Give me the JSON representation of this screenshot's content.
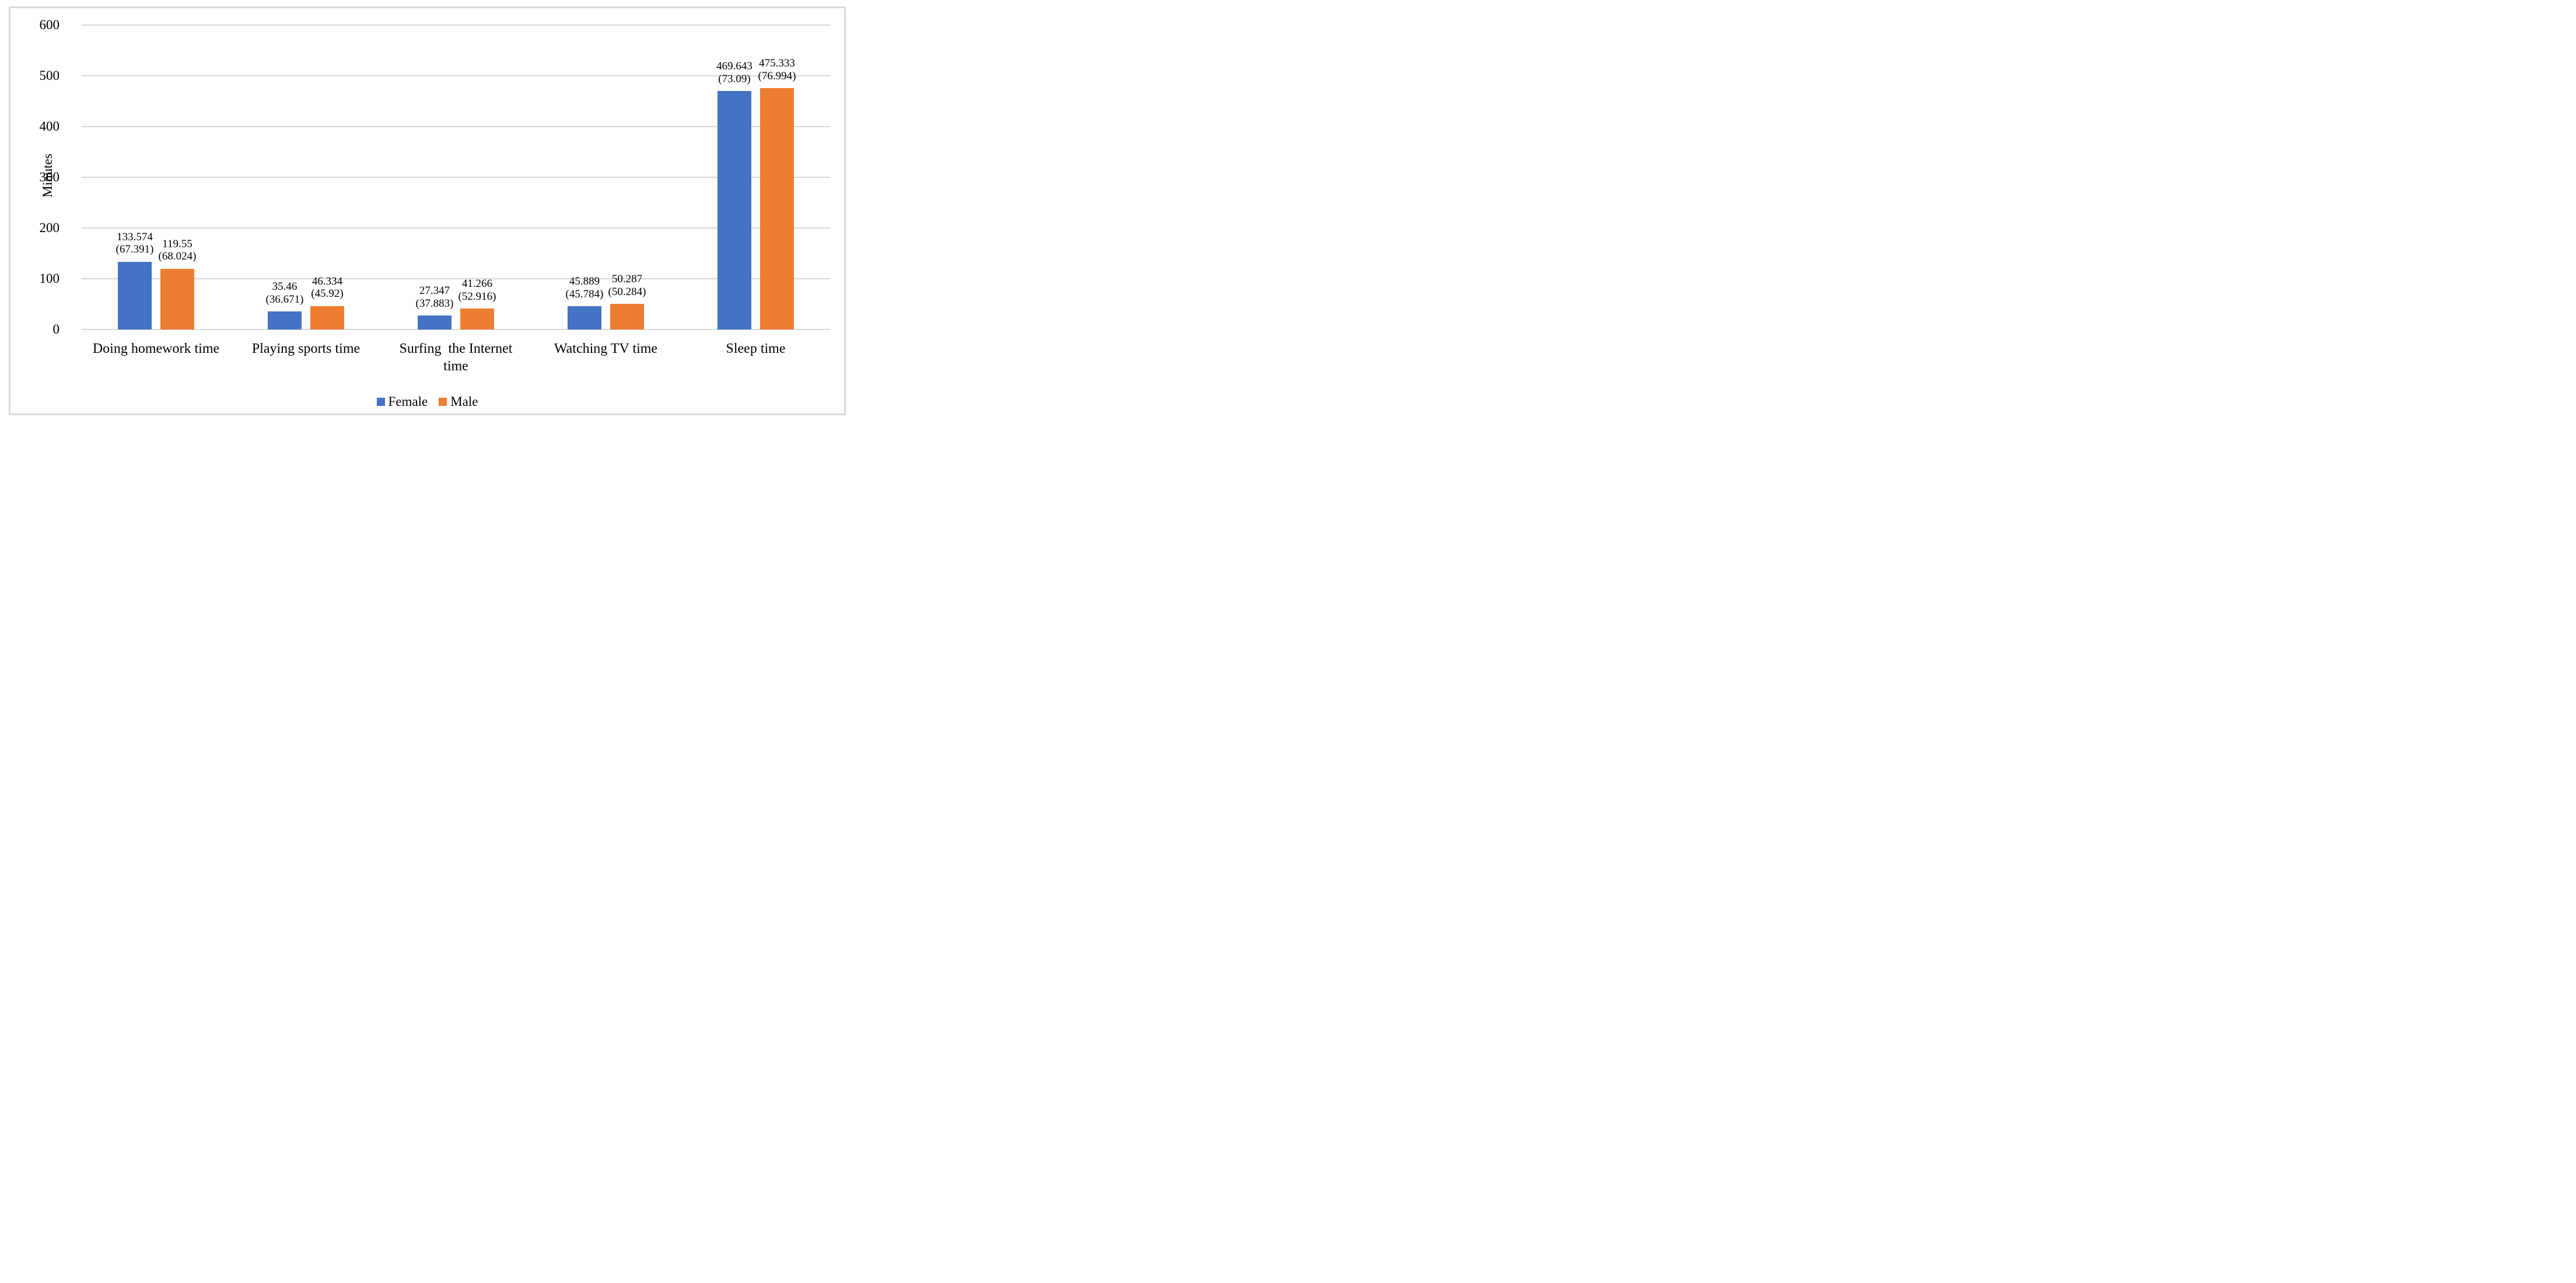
{
  "chart_data": {
    "type": "bar",
    "title": "",
    "ylabel": "Minutes",
    "xlabel": "",
    "ylim": [
      0,
      600
    ],
    "yticks": [
      0,
      100,
      200,
      300,
      400,
      500,
      600
    ],
    "grid": true,
    "legend_position": "bottom",
    "categories": [
      "Doing homework time",
      "Playing sports time",
      "Surfing  the Internet time",
      "Watching TV time",
      "Sleep time"
    ],
    "category_lines": [
      [
        "Doing homework time"
      ],
      [
        "Playing sports time"
      ],
      [
        "Surfing  the Internet",
        "time"
      ],
      [
        "Watching TV time"
      ],
      [
        "Sleep time"
      ]
    ],
    "series": [
      {
        "name": "Female",
        "color": "#4472C4",
        "values": [
          133.574,
          35.46,
          27.347,
          45.889,
          469.643
        ],
        "sd": [
          67.391,
          36.671,
          37.883,
          45.784,
          73.09
        ],
        "data_labels": [
          [
            "133.574",
            "(67.391)"
          ],
          [
            "35.46",
            "(36.671)"
          ],
          [
            "27.347",
            "(37.883)"
          ],
          [
            "45.889",
            "(45.784)"
          ],
          [
            "469.643",
            "(73.09)"
          ]
        ]
      },
      {
        "name": "Male",
        "color": "#ED7D31",
        "values": [
          119.55,
          46.334,
          41.266,
          50.287,
          475.333
        ],
        "sd": [
          68.024,
          45.92,
          52.916,
          50.284,
          76.994
        ],
        "data_labels": [
          [
            "119.55",
            "(68.024)"
          ],
          [
            "46.334",
            "(45.92)"
          ],
          [
            "41.266",
            "(52.916)"
          ],
          [
            "50.287",
            "(50.284)"
          ],
          [
            "475.333",
            "(76.994)"
          ]
        ]
      }
    ],
    "colors": {
      "female": "#4472C4",
      "male": "#ED7D31",
      "gridline": "#D9D9D9",
      "frame_border": "#D9D9D9",
      "text": "#000000"
    }
  }
}
